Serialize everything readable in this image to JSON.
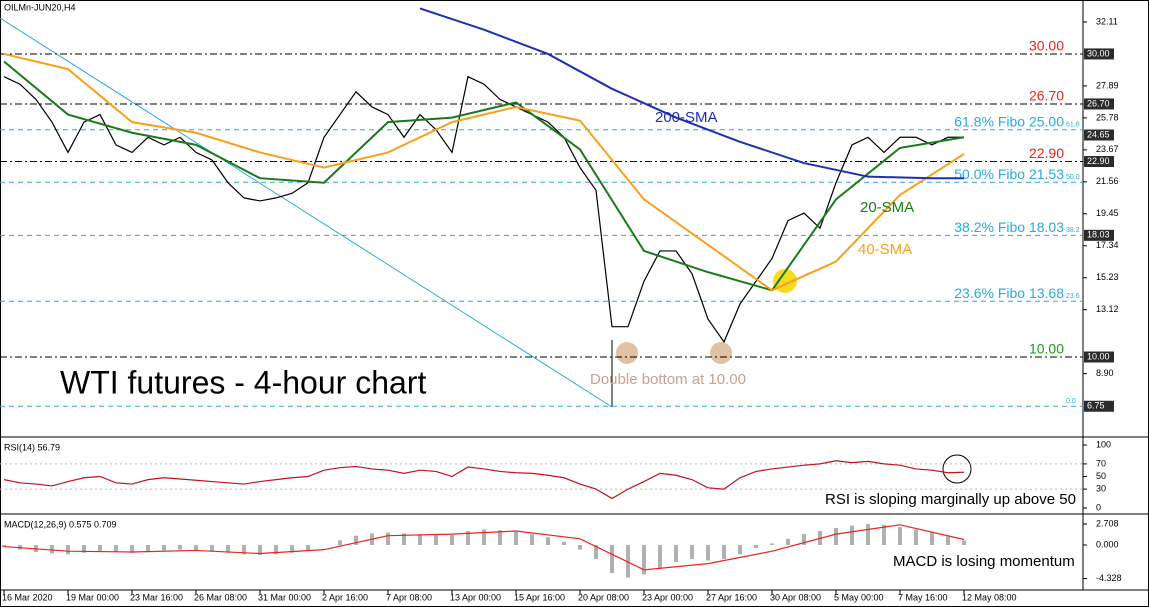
{
  "chart_data": [
    {
      "type": "line",
      "title": "OILMn-JUN20,H4",
      "annotations": [
        "WTI futures - 4-hour chart",
        "Double bottom at 10.00"
      ],
      "categories": [
        "16 Mar 2020",
        null,
        null,
        null,
        "19 Mar 00:00",
        null,
        null,
        null,
        "23 Mar 16:00",
        null,
        null,
        null,
        "26 Mar 08:00",
        null,
        null,
        null,
        "31 Mar 00:00",
        null,
        null,
        null,
        "2 Apr 16:00",
        null,
        null,
        null,
        "7 Apr 08:00",
        null,
        null,
        null,
        "13 Apr 00:00",
        null,
        null,
        null,
        "15 Apr 16:00",
        null,
        null,
        null,
        "20 Apr 08:00",
        null,
        null,
        null,
        "23 Apr 00:00",
        null,
        null,
        null,
        "27 Apr 16:00",
        null,
        null,
        null,
        "30 Apr 08:00",
        null,
        null,
        null,
        "5 May 00:00",
        null,
        null,
        null,
        "7 May 16:00",
        null,
        null,
        null,
        "12 May 08:00"
      ],
      "ylim": [
        4.72,
        33.56
      ],
      "yticks": [
        32.11,
        27.89,
        25.78,
        23.67,
        21.56,
        19.45,
        17.34,
        15.23,
        13.12,
        {
          "value": 8.9,
          "label": "8.90"
        }
      ],
      "series": [
        {
          "color": "#000000",
          "values": [
            28.5,
            28,
            27,
            25.5,
            23.5,
            25.5,
            26,
            24,
            23.5,
            24.5,
            24,
            24.5,
            23.5,
            23,
            21.5,
            20.5,
            20.3,
            20.5,
            20.8,
            21.5,
            24.5,
            26,
            27.5,
            26.5,
            26,
            24.5,
            26,
            25,
            23.5,
            28.5,
            28,
            27,
            26.5,
            26,
            25.5,
            24.5,
            22.5,
            21,
            12,
            12,
            15,
            17,
            17,
            15.5,
            12.5,
            11,
            13.5,
            15,
            16.5,
            19,
            19.5,
            18.5,
            21.5,
            24,
            24.5,
            23.5,
            24.5,
            24.5,
            24,
            24.5,
            24.5
          ]
        },
        {
          "name": "20-SMA",
          "color": "#1a7a1a",
          "x": [
            0,
            4,
            8,
            12,
            16,
            20,
            24,
            28,
            32,
            36,
            40,
            44,
            48,
            52,
            56,
            60
          ],
          "values": [
            29.5,
            26,
            24.8,
            24,
            21.8,
            21.5,
            25.5,
            25.8,
            26.8,
            23.7,
            17,
            15.6,
            14.4,
            20.4,
            23.8,
            24.5
          ]
        },
        {
          "name": "40-SMA",
          "color": "#f7a11a",
          "x": [
            0,
            4,
            8,
            12,
            16,
            20,
            24,
            28,
            32,
            36,
            40,
            44,
            48,
            52,
            56,
            60
          ],
          "values": [
            30,
            29,
            25.5,
            24.8,
            23.5,
            22.5,
            23.5,
            25.5,
            26.5,
            25.6,
            20.4,
            17.4,
            14.4,
            16.3,
            20.7,
            23.4
          ]
        },
        {
          "name": "200-SMA",
          "color": "#1f2fb0",
          "x": [
            26,
            30,
            34,
            38,
            42,
            46,
            50,
            54,
            58,
            60
          ],
          "values": [
            33,
            31.6,
            30,
            27.7,
            25.8,
            24.2,
            22.8,
            21.9,
            21.8,
            21.8
          ]
        }
      ],
      "levels": [
        {
          "value": 30,
          "label": "30.00",
          "color": "#e8251c",
          "line": "#000000"
        },
        {
          "value": 26.7,
          "label": "26.70",
          "color": "#e8251c",
          "line": "#000000"
        },
        {
          "value": 25,
          "label": "61.8% Fibo 25.00",
          "fibo": "61.8",
          "color": "#29a9e0",
          "line": "#29a9e0"
        },
        {
          "value": 22.9,
          "label": "22.90",
          "color": "#e8251c",
          "line": "#000000"
        },
        {
          "value": 21.53,
          "label": "50.0% Fibo 21.53",
          "fibo": "50.0",
          "color": "#29a9e0",
          "line": "#29a9e0"
        },
        {
          "value": 18.03,
          "label": "38.2% Fibo 18.03",
          "fibo": "38.2",
          "color": "#29a9e0",
          "line": "#29a9e0"
        },
        {
          "value": 13.68,
          "label": "23.6% Fibo 13.68",
          "fibo": "23.6",
          "color": "#29a9e0",
          "line": "#29a9e0"
        },
        {
          "value": 10,
          "label": "10.00",
          "color": "#1a9a1a",
          "line": "#000000"
        },
        {
          "value": 6.75,
          "fibo": "0.0",
          "color": "#29a9e0",
          "line": "#29a9e0"
        }
      ],
      "price_tags": [
        {
          "value": 30,
          "label": "30.00"
        },
        {
          "value": 26.7,
          "label": "26.70"
        },
        {
          "value": 24.65,
          "label": "24.65"
        },
        {
          "value": 22.9,
          "label": "22.90"
        },
        {
          "value": 18.03,
          "label": "18.03"
        },
        {
          "value": 10,
          "label": "10.00"
        },
        {
          "value": 6.75,
          "label": "6.75"
        }
      ]
    },
    {
      "type": "line",
      "title": "RSI(14) 56.79",
      "annotations": [
        "RSI is sloping marginally up above 50"
      ],
      "ylim": [
        0,
        100
      ],
      "yticks": [
        100,
        70,
        50,
        30,
        0
      ],
      "series": [
        {
          "color": "#c0141c",
          "values": [
            45,
            40,
            38,
            35,
            42,
            48,
            50,
            40,
            38,
            45,
            48,
            46,
            44,
            42,
            40,
            38,
            42,
            45,
            48,
            50,
            60,
            64,
            66,
            62,
            60,
            55,
            60,
            58,
            50,
            65,
            62,
            58,
            56,
            55,
            52,
            48,
            38,
            30,
            15,
            30,
            42,
            55,
            52,
            45,
            32,
            30,
            48,
            58,
            62,
            65,
            68,
            70,
            75,
            72,
            74,
            70,
            68,
            62,
            60,
            56,
            56.79
          ]
        }
      ]
    },
    {
      "type": "bar",
      "title": "MACD(12,26,9) 0.575 0.709",
      "annotations": [
        "MACD is losing momentum"
      ],
      "ylim": [
        -5.8,
        3.48
      ],
      "yticks": [
        2.708,
        {
          "value": 0,
          "label": "0.000"
        },
        -4.328
      ],
      "color": "#b0b0b0",
      "values": [
        -0.3,
        -0.6,
        -0.9,
        -1.1,
        -1.2,
        -1,
        -0.8,
        -0.9,
        -1,
        -0.9,
        -0.7,
        -0.6,
        -0.7,
        -0.8,
        -1,
        -1.2,
        -1.3,
        -1.2,
        -1,
        -0.8,
        0,
        0.6,
        1.2,
        1.5,
        1.6,
        1.5,
        1.4,
        1.4,
        1.3,
        1.8,
        2,
        1.9,
        1.7,
        1.4,
        1,
        0.4,
        -0.6,
        -1.8,
        -3.6,
        -4.2,
        -3.8,
        -3,
        -2.2,
        -1.8,
        -2,
        -1.8,
        -1.2,
        -0.4,
        0.2,
        0.8,
        1.4,
        1.8,
        2.2,
        2.5,
        2.7,
        2.6,
        2.3,
        2,
        1.6,
        1.1,
        0.575
      ],
      "series": [
        {
          "color": "#e8251c",
          "x": [
            0,
            4,
            8,
            12,
            16,
            20,
            24,
            28,
            32,
            36,
            40,
            44,
            48,
            52,
            56,
            60
          ],
          "values": [
            -0.2,
            -0.8,
            -0.9,
            -0.7,
            -1.1,
            -0.6,
            1.2,
            1.4,
            1.8,
            0.8,
            -3.2,
            -2.4,
            -0.8,
            1.4,
            2.6,
            0.709
          ]
        }
      ]
    }
  ]
}
